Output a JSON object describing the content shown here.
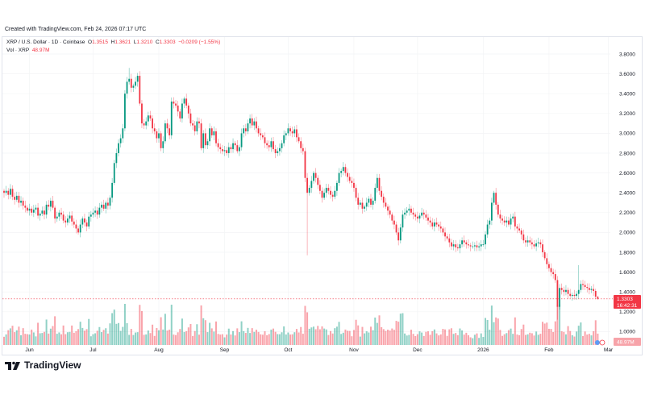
{
  "header": {
    "created": "Created with TradingView.com, Feb 24, 2026 07:17 UTC",
    "symbol": "XRP / U.S. Dollar · 1D · Coinbase",
    "o_label": "O",
    "o": "1.3515",
    "h_label": "H",
    "h": "1.3621",
    "l_label": "L",
    "l": "1.3210",
    "c_label": "C",
    "c": "1.3303",
    "change": "−0.0209 (−1.55%)",
    "vol_label": "Vol · XRP",
    "vol_value": "48.97M"
  },
  "price_tag": {
    "price": "1.3303",
    "countdown": "16:42:31"
  },
  "volume_tag": "48.97M",
  "logo_text": "TradingView",
  "colors": {
    "up": "#089981",
    "down": "#f23645",
    "grid": "#f3f4f6"
  },
  "chart_data": {
    "type": "candlestick",
    "interval": "1D",
    "first_date": "2025-05-20",
    "last_date": "2026-02-24",
    "ylim": [
      0.9,
      3.85
    ],
    "y_ticks": [
      "3.8000",
      "3.6000",
      "3.4000",
      "3.2000",
      "3.0000",
      "2.8000",
      "2.6000",
      "2.4000",
      "2.2000",
      "2.0000",
      "1.8000",
      "1.6000",
      "1.4000",
      "1.2000",
      "1.0000"
    ],
    "x_ticks": [
      {
        "label": "Jun",
        "date": "2025-06-01"
      },
      {
        "label": "Jul",
        "date": "2025-07-01"
      },
      {
        "label": "Aug",
        "date": "2025-08-01"
      },
      {
        "label": "Sep",
        "date": "2025-09-01"
      },
      {
        "label": "Oct",
        "date": "2025-10-01"
      },
      {
        "label": "Nov",
        "date": "2025-11-01"
      },
      {
        "label": "Dec",
        "date": "2025-12-01"
      },
      {
        "label": "2026",
        "date": "2026-01-01"
      },
      {
        "label": "Feb",
        "date": "2026-02-01"
      },
      {
        "label": "Mar",
        "date": "2026-03-01"
      }
    ],
    "grid": true,
    "last_candle": {
      "open": 1.3515,
      "high": 1.3621,
      "low": 1.321,
      "close": 1.3303
    },
    "notable_wicks": [
      {
        "date": "2025-07-18",
        "high": 3.66
      },
      {
        "date": "2025-10-10",
        "low": 1.77
      },
      {
        "date": "2026-02-05",
        "low": 1.12
      },
      {
        "date": "2026-02-15",
        "high": 1.67
      }
    ],
    "closes": [
      2.4,
      2.42,
      2.38,
      2.44,
      2.36,
      2.33,
      2.37,
      2.3,
      2.32,
      2.27,
      2.25,
      2.22,
      2.24,
      2.2,
      2.23,
      2.25,
      2.17,
      2.19,
      2.22,
      2.18,
      2.28,
      2.26,
      2.32,
      2.25,
      2.14,
      2.16,
      2.2,
      2.18,
      2.12,
      2.1,
      2.14,
      2.17,
      2.11,
      2.08,
      2.04,
      2.0,
      2.08,
      2.14,
      2.1,
      2.06,
      2.16,
      2.18,
      2.2,
      2.22,
      2.18,
      2.25,
      2.28,
      2.24,
      2.3,
      2.27,
      2.35,
      2.5,
      2.7,
      2.8,
      2.9,
      2.95,
      3.05,
      3.4,
      3.52,
      3.55,
      3.46,
      3.48,
      3.52,
      3.58,
      3.3,
      3.1,
      3.08,
      3.12,
      3.18,
      3.15,
      3.05,
      3.02,
      2.95,
      3.0,
      2.85,
      2.92,
      3.1,
      3.05,
      2.98,
      3.32,
      3.3,
      3.28,
      3.22,
      3.15,
      3.3,
      3.35,
      3.28,
      3.2,
      3.1,
      3.08,
      3.02,
      3.12,
      3.1,
      2.85,
      3.0,
      2.88,
      2.92,
      3.05,
      2.98,
      3.02,
      2.9,
      2.86,
      2.84,
      2.82,
      2.83,
      2.8,
      2.86,
      2.84,
      2.9,
      2.88,
      2.82,
      2.86,
      3.0,
      3.05,
      3.02,
      3.1,
      3.15,
      3.08,
      3.12,
      3.05,
      3.0,
      2.98,
      2.96,
      2.9,
      2.88,
      2.86,
      2.92,
      2.84,
      2.8,
      2.82,
      2.85,
      2.9,
      2.98,
      3.0,
      3.05,
      3.02,
      3.0,
      3.04,
      2.96,
      2.92,
      2.85,
      2.82,
      2.55,
      2.4,
      2.45,
      2.52,
      2.6,
      2.55,
      2.48,
      2.42,
      2.35,
      2.4,
      2.45,
      2.42,
      2.38,
      2.36,
      2.42,
      2.5,
      2.6,
      2.62,
      2.66,
      2.6,
      2.56,
      2.52,
      2.5,
      2.45,
      2.35,
      2.28,
      2.3,
      2.24,
      2.26,
      2.3,
      2.34,
      2.28,
      2.32,
      2.45,
      2.55,
      2.42,
      2.36,
      2.3,
      2.26,
      2.22,
      2.18,
      2.12,
      2.08,
      2.0,
      1.92,
      2.05,
      2.18,
      2.2,
      2.22,
      2.24,
      2.2,
      2.18,
      2.16,
      2.14,
      2.17,
      2.2,
      2.18,
      2.15,
      2.12,
      2.1,
      2.06,
      2.1,
      2.08,
      2.06,
      2.04,
      2.0,
      1.96,
      1.94,
      1.9,
      1.86,
      1.88,
      1.85,
      1.84,
      1.88,
      1.92,
      1.9,
      1.88,
      1.87,
      1.86,
      1.86,
      1.87,
      1.85,
      1.86,
      1.88,
      1.88,
      1.98,
      2.08,
      2.12,
      2.3,
      2.4,
      2.28,
      2.18,
      2.14,
      2.12,
      2.1,
      2.12,
      2.08,
      2.14,
      2.16,
      2.06,
      2.04,
      2.02,
      1.98,
      1.92,
      1.9,
      1.92,
      1.9,
      1.88,
      1.86,
      1.89,
      1.9,
      1.88,
      1.8,
      1.74,
      1.68,
      1.64,
      1.6,
      1.58,
      1.52,
      1.25,
      1.44,
      1.42,
      1.4,
      1.42,
      1.38,
      1.36,
      1.37,
      1.36,
      1.38,
      1.42,
      1.48,
      1.47,
      1.45,
      1.44,
      1.42,
      1.43,
      1.41,
      1.3512,
      1.3303
    ]
  }
}
